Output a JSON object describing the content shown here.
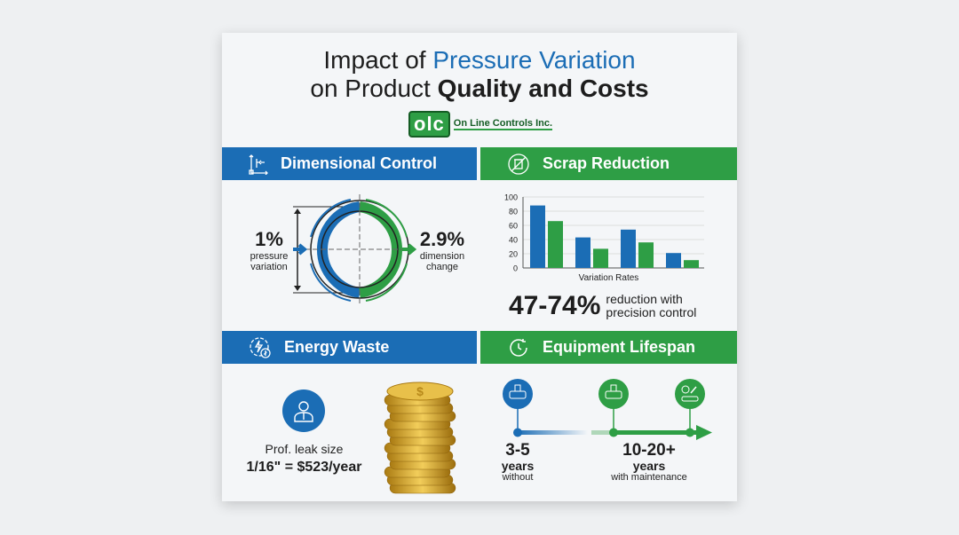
{
  "title": {
    "line1_a": "Impact of ",
    "line1_b": "Pressure Variation",
    "line2_a": "on Product ",
    "line2_b": "Quality and Costs"
  },
  "logo": {
    "mark": "olc",
    "text": "On Line Controls Inc."
  },
  "colors": {
    "blue": "#1b6db5",
    "green": "#2e9e45"
  },
  "sections": {
    "dimensional": {
      "title": "Dimensional Control",
      "icon": "dimension-arrows-icon",
      "left_value": "1%",
      "left_label1": "pressure",
      "left_label2": "variation",
      "right_value": "2.9%",
      "right_label1": "dimension",
      "right_label2": "change"
    },
    "scrap": {
      "title": "Scrap Reduction",
      "icon": "no-trash-icon",
      "stat": "47-74%",
      "stat_label1": "reduction with",
      "stat_label2": "precision control"
    },
    "energy": {
      "title": "Energy Waste",
      "icon": "energy-dollar-icon",
      "label": "Prof. leak size",
      "value": "1/16\" = $523/year"
    },
    "lifespan": {
      "title": "Equipment Lifespan",
      "icon": "clock-icon",
      "without_value": "3-5",
      "without_unit": "years",
      "without_label": "without",
      "with_value": "10-20+",
      "with_unit": "years",
      "with_label": "with maintenance"
    }
  },
  "chart_data": {
    "type": "bar",
    "xlabel": "Variation Rates",
    "ylabel": "",
    "ylim": [
      0,
      100
    ],
    "yticks": [
      0,
      20,
      40,
      60,
      80,
      100
    ],
    "grid": true,
    "categories": [
      "",
      "",
      "",
      ""
    ],
    "series": [
      {
        "color": "#1b6db5",
        "values": [
          88,
          43,
          54,
          21
        ]
      },
      {
        "color": "#2e9e45",
        "values": [
          66,
          27,
          36,
          11
        ]
      }
    ]
  }
}
